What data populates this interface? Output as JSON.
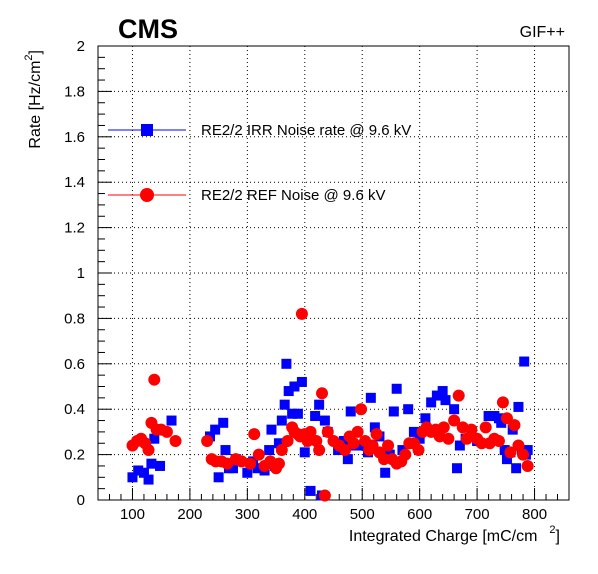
{
  "chart_data": {
    "type": "scatter",
    "experiment_label": "CMS",
    "facility_label": "GIF++",
    "xlabel": "Integrated Charge [mC/cm",
    "xlabel_sup": "2",
    "xlabel_close": "]",
    "ylabel": "Rate [Hz/cm",
    "ylabel_sup": "2",
    "ylabel_close": "]",
    "xlim": [
      40,
      860
    ],
    "ylim": [
      0,
      2
    ],
    "x_ticks": [
      100,
      200,
      300,
      400,
      500,
      600,
      700,
      800
    ],
    "y_ticks": [
      0,
      0.2,
      0.4,
      0.6,
      0.8,
      1,
      1.2,
      1.4,
      1.6,
      1.8,
      2
    ],
    "grid": true,
    "legend_position": "top-left",
    "series": [
      {
        "name": "RE2/2 IRR Noise rate @ 9.6 kV",
        "color": "#0000ff",
        "marker": "square",
        "x": [
          100,
          110,
          120,
          128,
          133,
          138,
          148,
          168,
          235,
          244,
          250,
          258,
          262,
          268,
          275,
          280,
          300,
          310,
          318,
          330,
          338,
          342,
          348,
          355,
          360,
          365,
          368,
          372,
          378,
          382,
          388,
          395,
          400,
          410,
          418,
          425,
          430,
          435,
          440,
          458,
          462,
          468,
          475,
          480,
          488,
          500,
          510,
          515,
          522,
          530,
          540,
          548,
          555,
          560,
          570,
          580,
          590,
          600,
          610,
          620,
          625,
          630,
          640,
          645,
          660,
          665,
          670,
          680,
          690,
          700,
          720,
          730,
          738,
          742,
          748,
          752,
          758,
          762,
          768,
          772,
          778,
          782,
          785,
          788
        ],
        "y": [
          0.1,
          0.13,
          0.12,
          0.09,
          0.16,
          0.27,
          0.15,
          0.35,
          0.28,
          0.31,
          0.1,
          0.34,
          0.22,
          0.14,
          0.14,
          0.18,
          0.12,
          0.17,
          0.14,
          0.13,
          0.22,
          0.31,
          0.15,
          0.25,
          0.35,
          0.42,
          0.6,
          0.48,
          0.38,
          0.5,
          0.38,
          0.52,
          0.21,
          0.04,
          0.37,
          0.42,
          0.02,
          0.35,
          0.3,
          0.22,
          0.23,
          0.26,
          0.18,
          0.39,
          0.24,
          0.24,
          0.21,
          0.45,
          0.32,
          0.28,
          0.12,
          0.2,
          0.39,
          0.49,
          0.22,
          0.4,
          0.3,
          0.27,
          0.36,
          0.43,
          0.3,
          0.46,
          0.48,
          0.44,
          0.4,
          0.14,
          0.24,
          0.27,
          0.3,
          0.26,
          0.37,
          0.37,
          0.36,
          0.34,
          0.22,
          0.18,
          0.21,
          0.31,
          0.14,
          0.41,
          0.22,
          0.61,
          0.2,
          0.22
        ]
      },
      {
        "name": "RE2/2 REF Noise @ 9.6 kV",
        "color": "#ff0000",
        "marker": "circle",
        "x": [
          100,
          108,
          115,
          122,
          128,
          133,
          138,
          142,
          150,
          160,
          175,
          230,
          238,
          245,
          255,
          265,
          280,
          290,
          305,
          312,
          320,
          330,
          340,
          350,
          355,
          360,
          370,
          378,
          382,
          388,
          392,
          395,
          400,
          405,
          410,
          420,
          425,
          430,
          435,
          440,
          450,
          460,
          470,
          478,
          485,
          492,
          498,
          505,
          512,
          518,
          525,
          530,
          538,
          545,
          552,
          560,
          568,
          575,
          582,
          590,
          598,
          605,
          612,
          620,
          628,
          635,
          642,
          650,
          660,
          668,
          675,
          682,
          690,
          700,
          708,
          715,
          722,
          730,
          738,
          745,
          752,
          758,
          765,
          772,
          780,
          788
        ],
        "y": [
          0.24,
          0.26,
          0.27,
          0.25,
          0.22,
          0.34,
          0.53,
          0.31,
          0.31,
          0.3,
          0.26,
          0.26,
          0.18,
          0.17,
          0.17,
          0.16,
          0.18,
          0.17,
          0.16,
          0.29,
          0.2,
          0.15,
          0.17,
          0.14,
          0.16,
          0.22,
          0.26,
          0.32,
          0.3,
          0.29,
          0.28,
          0.82,
          0.29,
          0.26,
          0.3,
          0.26,
          0.22,
          0.47,
          0.02,
          0.3,
          0.26,
          0.24,
          0.22,
          0.28,
          0.25,
          0.3,
          0.4,
          0.26,
          0.22,
          0.24,
          0.29,
          0.21,
          0.18,
          0.24,
          0.18,
          0.16,
          0.17,
          0.2,
          0.25,
          0.25,
          0.22,
          0.3,
          0.32,
          0.3,
          0.31,
          0.28,
          0.32,
          0.27,
          0.35,
          0.46,
          0.32,
          0.27,
          0.31,
          0.27,
          0.25,
          0.32,
          0.25,
          0.27,
          0.26,
          0.43,
          0.36,
          0.21,
          0.33,
          0.24,
          0.2,
          0.15
        ]
      }
    ]
  }
}
